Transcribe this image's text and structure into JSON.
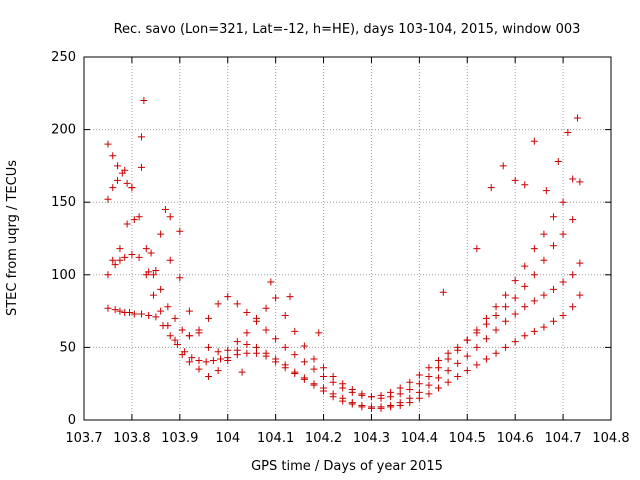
{
  "chart_data": {
    "type": "scatter",
    "title": "Rec. savo (Lon=321, Lat=-12, h=HE), days 103-104, 2015, window 003",
    "xlabel": "GPS time / Days of year 2015",
    "ylabel": "STEC from uqrg / TECUs",
    "xlim": [
      103.7,
      104.8
    ],
    "ylim": [
      0,
      250
    ],
    "xticks": [
      "103.7",
      "103.8",
      "103.9",
      "104",
      "104.1",
      "104.2",
      "104.3",
      "104.4",
      "104.5",
      "104.6",
      "104.7",
      "104.8"
    ],
    "yticks": [
      "0",
      "50",
      "100",
      "150",
      "200",
      "250"
    ],
    "grid": true,
    "marker": "+",
    "marker_color": "#cc0000",
    "series": [
      {
        "x": [
          103.75,
          103.765,
          103.775,
          103.785,
          103.795,
          103.805,
          103.82,
          103.835,
          103.85,
          103.865,
          103.88,
          103.895,
          103.91,
          103.925,
          103.94,
          103.955,
          103.97,
          103.985,
          104.0,
          104.02,
          104.04,
          104.06,
          104.08,
          104.1,
          104.12,
          104.14,
          104.16,
          104.18,
          104.2,
          104.22,
          104.24,
          104.26,
          104.28,
          104.3,
          104.32,
          104.34,
          104.36,
          104.38,
          104.4,
          104.42,
          104.44,
          104.46,
          104.48,
          104.5,
          104.52,
          104.54,
          104.56,
          104.58,
          104.6,
          104.62,
          104.64,
          104.66,
          104.68,
          104.7,
          104.72,
          104.735
        ],
        "y": [
          77,
          76,
          75,
          74,
          74,
          73,
          73,
          72,
          71,
          65,
          58,
          52,
          47,
          43,
          41,
          40,
          41,
          42,
          43,
          45,
          46,
          46,
          44,
          40,
          36,
          32,
          28,
          24,
          20,
          16,
          13,
          11,
          9,
          8,
          8,
          9,
          10,
          12,
          15,
          18,
          22,
          26,
          30,
          34,
          38,
          42,
          46,
          50,
          54,
          58,
          61,
          64,
          68,
          72,
          78,
          86
        ]
      },
      {
        "x": [
          103.75,
          103.765,
          103.775,
          103.785,
          103.8,
          103.815,
          103.83,
          103.845,
          103.86,
          103.875,
          103.89,
          103.905,
          103.92,
          103.94,
          103.96,
          103.98,
          104.0,
          104.02,
          104.04,
          104.06,
          104.08,
          104.1,
          104.12,
          104.14,
          104.16,
          104.18,
          104.2,
          104.22,
          104.24,
          104.26,
          104.28,
          104.3,
          104.32,
          104.34,
          104.36,
          104.38,
          104.4,
          104.42,
          104.44,
          104.46,
          104.48,
          104.5,
          104.52,
          104.54,
          104.56,
          104.58,
          104.6,
          104.62,
          104.64,
          104.66,
          104.68,
          104.7,
          104.72,
          104.735
        ],
        "y": [
          100,
          107,
          110,
          112,
          114,
          112,
          100,
          86,
          75,
          65,
          55,
          45,
          40,
          35,
          30,
          34,
          41,
          48,
          52,
          50,
          46,
          42,
          38,
          33,
          29,
          25,
          22,
          18,
          15,
          12,
          10,
          9,
          9,
          10,
          12,
          15,
          19,
          24,
          29,
          34,
          39,
          44,
          50,
          56,
          62,
          68,
          73,
          78,
          82,
          86,
          90,
          95,
          100,
          108
        ]
      },
      {
        "x": [
          103.75,
          103.76,
          103.77,
          103.78,
          103.79,
          103.8,
          103.815,
          103.83,
          103.845,
          103.86,
          103.875,
          103.89,
          103.905,
          103.92,
          103.94,
          103.96,
          103.98,
          104.0,
          104.02,
          104.04,
          104.06,
          104.08,
          104.1,
          104.12,
          104.14,
          104.16,
          104.18,
          104.2,
          104.22,
          104.24,
          104.26,
          104.28,
          104.3,
          104.32,
          104.34,
          104.36,
          104.38,
          104.4,
          104.42,
          104.44,
          104.46,
          104.48,
          104.5,
          104.52,
          104.54,
          104.56,
          104.58,
          104.6,
          104.62,
          104.64,
          104.66,
          104.68,
          104.7,
          104.72,
          104.735
        ],
        "y": [
          152,
          160,
          165,
          170,
          163,
          160,
          140,
          118,
          100,
          90,
          78,
          70,
          62,
          58,
          62,
          70,
          80,
          85,
          80,
          74,
          68,
          62,
          56,
          50,
          45,
          40,
          35,
          30,
          26,
          22,
          19,
          17,
          16,
          17,
          19,
          22,
          26,
          31,
          36,
          41,
          46,
          50,
          55,
          60,
          66,
          72,
          78,
          84,
          92,
          100,
          110,
          120,
          128,
          138,
          164
        ]
      },
      {
        "x": [
          103.75,
          103.76,
          103.77,
          103.785,
          103.8,
          103.82,
          103.84,
          103.86,
          103.88,
          103.9,
          103.92,
          103.94,
          103.96,
          103.98,
          104.0,
          104.02,
          104.04,
          104.06,
          104.08,
          104.1,
          104.12,
          104.14,
          104.16,
          104.18,
          104.2,
          104.22,
          104.24,
          104.26,
          104.28,
          104.3,
          104.32,
          104.34,
          104.36,
          104.38,
          104.4,
          104.42,
          104.44,
          104.46,
          104.48,
          104.5,
          104.52,
          104.54,
          104.56,
          104.58,
          104.6,
          104.62,
          104.64,
          104.66,
          104.68,
          104.7,
          104.72
        ],
        "y": [
          190,
          182,
          175,
          172,
          160,
          174,
          115,
          128,
          140,
          98,
          75,
          60,
          50,
          47,
          48,
          54,
          60,
          70,
          77,
          84,
          72,
          61,
          51,
          42,
          36,
          30,
          25,
          21,
          18,
          16,
          15,
          16,
          18,
          21,
          25,
          30,
          36,
          42,
          48,
          55,
          62,
          70,
          78,
          86,
          96,
          106,
          118,
          128,
          140,
          150,
          166
        ]
      },
      {
        "x": [
          103.76,
          103.775,
          103.79,
          103.805,
          103.82,
          103.825,
          103.835,
          103.85,
          103.87,
          103.88,
          103.9,
          103.92,
          104.03,
          104.09,
          104.13,
          104.19,
          104.45,
          104.52,
          104.55,
          104.575,
          104.6,
          104.62,
          104.64,
          104.665,
          104.69,
          104.71,
          104.73
        ],
        "y": [
          110,
          118,
          135,
          138,
          195,
          220,
          102,
          103,
          145,
          110,
          130,
          58,
          33,
          95,
          85,
          60,
          88,
          118,
          160,
          175,
          165,
          162,
          192,
          158,
          178,
          198,
          208
        ]
      }
    ]
  }
}
